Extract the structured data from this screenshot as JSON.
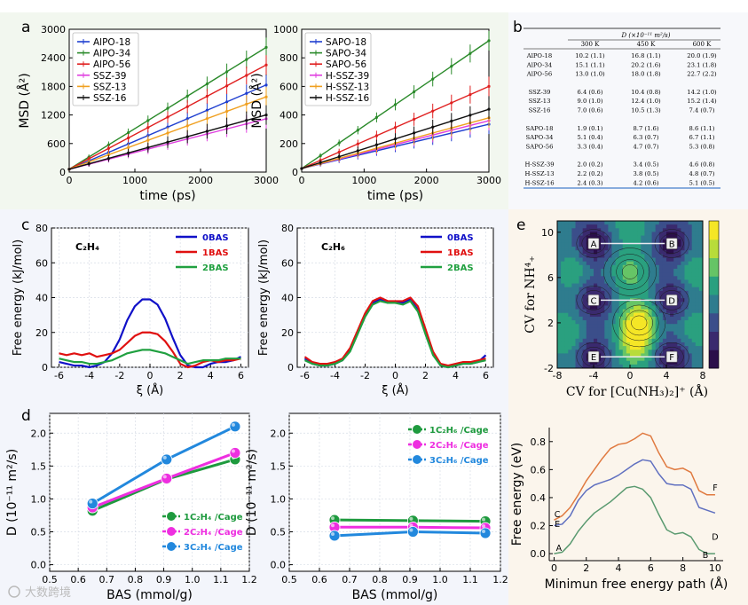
{
  "panel_letters": {
    "a": "a",
    "b": "b",
    "c": "c",
    "d": "d",
    "e": "e"
  },
  "watermark": "大数跨境",
  "chart_data": [
    {
      "id": "a1",
      "type": "line",
      "xlabel": "time (ps)",
      "ylabel": "MSD  (Å²)",
      "xlim": [
        0,
        3000
      ],
      "ylim": [
        0,
        3000
      ],
      "xticks": [
        0,
        1000,
        2000,
        3000
      ],
      "yticks": [
        0,
        600,
        1200,
        1800,
        2400,
        3000
      ],
      "legend_position": "top-left",
      "series": [
        {
          "name": "AlPO-18",
          "color": "#1f3fd0",
          "x": [
            0,
            3000
          ],
          "y": [
            60,
            1830
          ]
        },
        {
          "name": "AlPO-34",
          "color": "#2a8a2a",
          "x": [
            0,
            3000
          ],
          "y": [
            60,
            2620
          ]
        },
        {
          "name": "AlPO-56",
          "color": "#e02020",
          "x": [
            0,
            3000
          ],
          "y": [
            60,
            2250
          ]
        },
        {
          "name": "SSZ-39",
          "color": "#e040e0",
          "x": [
            0,
            3000
          ],
          "y": [
            60,
            1120
          ]
        },
        {
          "name": "SSZ-13",
          "color": "#f0a020",
          "x": [
            0,
            3000
          ],
          "y": [
            60,
            1580
          ]
        },
        {
          "name": "SSZ-16",
          "color": "#111111",
          "x": [
            0,
            3000
          ],
          "y": [
            60,
            1200
          ]
        }
      ]
    },
    {
      "id": "a2",
      "type": "line",
      "xlabel": "time (ps)",
      "ylabel": "MSD  (Å²)",
      "xlim": [
        0,
        3000
      ],
      "ylim": [
        0,
        1000
      ],
      "xticks": [
        0,
        1000,
        2000,
        3000
      ],
      "yticks": [
        0,
        200,
        400,
        600,
        800,
        1000
      ],
      "legend_position": "top-left",
      "series": [
        {
          "name": "SAPO-18",
          "color": "#1f3fd0",
          "x": [
            0,
            3000
          ],
          "y": [
            25,
            335
          ]
        },
        {
          "name": "SAPO-34",
          "color": "#2a8a2a",
          "x": [
            0,
            3000
          ],
          "y": [
            25,
            920
          ]
        },
        {
          "name": "SAPO-56",
          "color": "#e02020",
          "x": [
            0,
            3000
          ],
          "y": [
            25,
            600
          ]
        },
        {
          "name": "H-SSZ-39",
          "color": "#e040e0",
          "x": [
            0,
            3000
          ],
          "y": [
            25,
            360
          ]
        },
        {
          "name": "H-SSZ-13",
          "color": "#f0a020",
          "x": [
            0,
            3000
          ],
          "y": [
            25,
            380
          ]
        },
        {
          "name": "H-SSZ-16",
          "color": "#111111",
          "x": [
            0,
            3000
          ],
          "y": [
            25,
            440
          ]
        }
      ]
    },
    {
      "id": "b",
      "type": "table",
      "header_main": "D (×10⁻¹¹ m²/s)",
      "columns": [
        "",
        "300 K",
        "450 K",
        "600 K"
      ],
      "groups": [
        [
          [
            "AlPO-18",
            "10.2 (1.1)",
            "16.8 (1.1)",
            "20.0 (1.9)"
          ],
          [
            "AlPO-34",
            "15.1 (1.1)",
            "20.2 (1.6)",
            "23.1 (1.8)"
          ],
          [
            "AlPO-56",
            "13.0 (1.0)",
            "18.0 (1.8)",
            "22.7 (2.2)"
          ]
        ],
        [
          [
            "SSZ-39",
            "6.4 (0.6)",
            "10.4 (0.8)",
            "14.2 (1.0)"
          ],
          [
            "SSZ-13",
            "9.0 (1.0)",
            "12.4 (1.0)",
            "15.2 (1.4)"
          ],
          [
            "SSZ-16",
            "7.0 (0.6)",
            "10.5 (1.3)",
            "7.4 (0.7)"
          ]
        ],
        [
          [
            "SAPO-18",
            "1.9 (0.1)",
            "8.7 (1.6)",
            "8.6 (1.1)"
          ],
          [
            "SAPO-34",
            "5.1 (0.4)",
            "6.3 (0.7)",
            "6.7 (1.1)"
          ],
          [
            "SAPO-56",
            "3.3 (0.4)",
            "4.7 (0.7)",
            "5.3 (0.8)"
          ]
        ],
        [
          [
            "H-SSZ-39",
            "2.0 (0.2)",
            "3.4 (0.5)",
            "4.6 (0.8)"
          ],
          [
            "H-SSZ-13",
            "2.2 (0.2)",
            "3.8 (0.5)",
            "4.8 (0.7)"
          ],
          [
            "H-SSZ-16",
            "2.4 (0.3)",
            "4.2 (0.6)",
            "5.1 (0.5)"
          ]
        ]
      ]
    },
    {
      "id": "c1",
      "type": "line",
      "title": "C₂H₄",
      "xlabel": "ξ (Å)",
      "ylabel": "Free energy (kJ/mol)",
      "xlim": [
        -6.5,
        6.5
      ],
      "ylim": [
        0,
        80
      ],
      "xticks": [
        -6,
        -4,
        -2,
        0,
        2,
        4,
        6
      ],
      "yticks": [
        0,
        20,
        40,
        60,
        80
      ],
      "legend_position": "top-right",
      "series": [
        {
          "name": "0BAS",
          "color": "#1010c8",
          "x": [
            -6,
            -5.5,
            -5,
            -4.5,
            -4,
            -3.5,
            -3,
            -2.5,
            -2,
            -1.5,
            -1,
            -0.5,
            0,
            0.5,
            1,
            1.5,
            2,
            2.5,
            3,
            3.5,
            4,
            4.5,
            5,
            5.5,
            6
          ],
          "y": [
            3,
            2,
            1,
            1,
            0,
            1,
            3,
            8,
            16,
            27,
            35,
            39,
            39,
            36,
            28,
            17,
            7,
            1,
            0,
            0,
            2,
            3,
            3,
            4,
            6
          ]
        },
        {
          "name": "1BAS",
          "color": "#e01010",
          "x": [
            -6,
            -5.5,
            -5,
            -4.5,
            -4,
            -3.5,
            -3,
            -2.5,
            -2,
            -1.5,
            -1,
            -0.5,
            0,
            0.5,
            1,
            1.5,
            2,
            2.5,
            3,
            3.5,
            4,
            4.5,
            5,
            5.5,
            6
          ],
          "y": [
            8,
            7,
            8,
            7,
            8,
            6,
            7,
            8,
            10,
            14,
            18,
            20,
            20,
            19,
            15,
            9,
            2,
            0,
            1,
            3,
            4,
            3,
            4,
            4,
            5
          ]
        },
        {
          "name": "2BAS",
          "color": "#20a040",
          "x": [
            -6,
            -5.5,
            -5,
            -4.5,
            -4,
            -3.5,
            -3,
            -2.5,
            -2,
            -1.5,
            -1,
            -0.5,
            0,
            0.5,
            1,
            1.5,
            2,
            2.5,
            3,
            3.5,
            4,
            4.5,
            5,
            5.5,
            6
          ],
          "y": [
            5,
            4,
            3,
            3,
            2,
            2,
            3,
            4,
            6,
            8,
            9,
            10,
            10,
            9,
            8,
            6,
            4,
            2,
            3,
            4,
            4,
            4,
            5,
            5,
            5
          ]
        }
      ]
    },
    {
      "id": "c2",
      "type": "line",
      "title": "C₂H₆",
      "xlabel": "ξ (Å)",
      "ylabel": "Free energy (kJ/mol)",
      "xlim": [
        -6.5,
        6.5
      ],
      "ylim": [
        0,
        80
      ],
      "xticks": [
        -6,
        -4,
        -2,
        0,
        2,
        4,
        6
      ],
      "yticks": [
        0,
        20,
        40,
        60,
        80
      ],
      "legend_position": "top-right",
      "series": [
        {
          "name": "0BAS",
          "color": "#1010c8",
          "x": [
            -6,
            -5.5,
            -5,
            -4.5,
            -4,
            -3.5,
            -3,
            -2.5,
            -2,
            -1.5,
            -1,
            -0.5,
            0,
            0.5,
            1,
            1.5,
            2,
            2.5,
            3,
            3.5,
            4,
            4.5,
            5,
            5.5,
            6
          ],
          "y": [
            5,
            2,
            1,
            1,
            2,
            4,
            10,
            20,
            30,
            37,
            39,
            37,
            38,
            37,
            39,
            33,
            20,
            8,
            1,
            0,
            1,
            2,
            2,
            3,
            7
          ]
        },
        {
          "name": "1BAS",
          "color": "#e01010",
          "x": [
            -6,
            -5.5,
            -5,
            -4.5,
            -4,
            -3.5,
            -3,
            -2.5,
            -2,
            -1.5,
            -1,
            -0.5,
            0,
            0.5,
            1,
            1.5,
            2,
            2.5,
            3,
            3.5,
            4,
            4.5,
            5,
            5.5,
            6
          ],
          "y": [
            6,
            3,
            2,
            2,
            3,
            5,
            11,
            21,
            31,
            38,
            40,
            38,
            38,
            38,
            40,
            35,
            22,
            9,
            2,
            1,
            2,
            3,
            3,
            4,
            5
          ]
        },
        {
          "name": "2BAS",
          "color": "#20a040",
          "x": [
            -6,
            -5.5,
            -5,
            -4.5,
            -4,
            -3.5,
            -3,
            -2.5,
            -2,
            -1.5,
            -1,
            -0.5,
            0,
            0.5,
            1,
            1.5,
            2,
            2.5,
            3,
            3.5,
            4,
            4.5,
            5,
            5.5,
            6
          ],
          "y": [
            4,
            2,
            1,
            1,
            2,
            4,
            9,
            19,
            29,
            36,
            38,
            37,
            37,
            36,
            38,
            32,
            19,
            7,
            1,
            0,
            1,
            2,
            2,
            3,
            4
          ]
        }
      ]
    },
    {
      "id": "d1",
      "type": "line",
      "xlabel": "BAS (mmol/g)",
      "ylabel": "D (10⁻¹¹ m²/s)",
      "xlim": [
        0.5,
        1.2
      ],
      "ylim": [
        -0.1,
        2.3
      ],
      "xticks": [
        0.5,
        0.6,
        0.7,
        0.8,
        0.9,
        1.0,
        1.1,
        1.2
      ],
      "yticks": [
        0.0,
        0.5,
        1.0,
        1.5,
        2.0
      ],
      "legend_position": "bottom-right",
      "series": [
        {
          "name": "1C₂H₄ /Cage",
          "color": "#1e9a3e",
          "x": [
            0.65,
            0.91,
            1.15
          ],
          "y": [
            0.82,
            1.3,
            1.6
          ]
        },
        {
          "name": "2C₂H₄ /Cage",
          "color": "#ee2ee0",
          "x": [
            0.65,
            0.91,
            1.15
          ],
          "y": [
            0.87,
            1.31,
            1.7
          ]
        },
        {
          "name": "3C₂H₄ /Cage",
          "color": "#2288dd",
          "x": [
            0.65,
            0.91,
            1.15
          ],
          "y": [
            0.93,
            1.6,
            2.1
          ]
        }
      ]
    },
    {
      "id": "d2",
      "type": "line",
      "xlabel": "BAS (mmol/g)",
      "ylabel": "D (10⁻¹¹ m²/s)",
      "xlim": [
        0.5,
        1.2
      ],
      "ylim": [
        -0.1,
        2.3
      ],
      "xticks": [
        0.5,
        0.6,
        0.7,
        0.8,
        0.9,
        1.0,
        1.1,
        1.2
      ],
      "yticks": [
        0.0,
        0.5,
        1.0,
        1.5,
        2.0
      ],
      "legend_position": "top-right",
      "series": [
        {
          "name": "1C₂H₆ /Cage",
          "color": "#1e9a3e",
          "x": [
            0.65,
            0.91,
            1.15
          ],
          "y": [
            0.68,
            0.67,
            0.66
          ]
        },
        {
          "name": "2C₂H₆ /Cage",
          "color": "#ee2ee0",
          "x": [
            0.65,
            0.91,
            1.15
          ],
          "y": [
            0.57,
            0.57,
            0.56
          ]
        },
        {
          "name": "3C₂H₆ /Cage",
          "color": "#2288dd",
          "x": [
            0.65,
            0.91,
            1.15
          ],
          "y": [
            0.44,
            0.5,
            0.48
          ]
        }
      ]
    },
    {
      "id": "e1",
      "type": "heatmap",
      "xlabel": "CV for [Cu(NH₃)₂]⁺ (Å)",
      "ylabel": "CV for NH⁴₊",
      "xlim": [
        -8,
        8
      ],
      "ylim": [
        -2,
        11
      ],
      "xticks": [
        -8,
        -4,
        0,
        4,
        8
      ],
      "yticks": [
        -2,
        2,
        6,
        10
      ],
      "markers": [
        {
          "label": "A",
          "x": -4,
          "y": 9
        },
        {
          "label": "B",
          "x": 4.6,
          "y": 9
        },
        {
          "label": "C",
          "x": -4,
          "y": 4
        },
        {
          "label": "D",
          "x": 4.6,
          "y": 4
        },
        {
          "label": "E",
          "x": -4,
          "y": -1
        },
        {
          "label": "F",
          "x": 4.6,
          "y": -1
        }
      ]
    },
    {
      "id": "e2",
      "type": "line",
      "xlabel": "Minimun free energy path (Å)",
      "ylabel": "Free energy (eV)",
      "xlim": [
        -0.3,
        10.5
      ],
      "ylim": [
        -0.05,
        0.9
      ],
      "xticks": [
        0,
        2,
        4,
        6,
        8,
        10
      ],
      "yticks": [
        0.0,
        0.2,
        0.4,
        0.6,
        0.8
      ],
      "point_labels": [
        {
          "label": "A",
          "x": 0.3,
          "y": 0.02
        },
        {
          "label": "B",
          "x": 9.4,
          "y": -0.03
        },
        {
          "label": "C",
          "x": 0.2,
          "y": 0.26
        },
        {
          "label": "D",
          "x": 10.0,
          "y": 0.1
        },
        {
          "label": "E",
          "x": 0.2,
          "y": 0.19
        },
        {
          "label": "F",
          "x": 10.0,
          "y": 0.45
        }
      ],
      "series": [
        {
          "color": "#e07a40",
          "x": [
            0,
            0.5,
            1,
            1.5,
            2,
            2.5,
            3,
            3.5,
            4,
            4.5,
            5,
            5.5,
            6,
            6.5,
            7,
            7.5,
            8,
            8.5,
            9,
            9.5,
            10
          ],
          "y": [
            0.24,
            0.27,
            0.33,
            0.42,
            0.52,
            0.6,
            0.68,
            0.75,
            0.78,
            0.79,
            0.82,
            0.86,
            0.84,
            0.72,
            0.62,
            0.6,
            0.61,
            0.58,
            0.45,
            0.42,
            0.42
          ]
        },
        {
          "color": "#6070c0",
          "x": [
            0,
            0.5,
            1,
            1.5,
            2,
            2.5,
            3,
            3.5,
            4,
            4.5,
            5,
            5.5,
            6,
            6.5,
            7,
            7.5,
            8,
            8.5,
            9,
            9.5,
            10
          ],
          "y": [
            0.2,
            0.21,
            0.27,
            0.38,
            0.45,
            0.49,
            0.51,
            0.53,
            0.56,
            0.6,
            0.64,
            0.67,
            0.66,
            0.57,
            0.5,
            0.49,
            0.49,
            0.46,
            0.33,
            0.31,
            0.29
          ]
        },
        {
          "color": "#5a9a70",
          "x": [
            0,
            0.5,
            1,
            1.5,
            2,
            2.5,
            3,
            3.5,
            4,
            4.5,
            5,
            5.5,
            6,
            6.5,
            7,
            7.5,
            8,
            8.5,
            9,
            9.5,
            10
          ],
          "y": [
            0.0,
            0.01,
            0.07,
            0.16,
            0.23,
            0.29,
            0.33,
            0.37,
            0.42,
            0.47,
            0.48,
            0.46,
            0.4,
            0.28,
            0.17,
            0.14,
            0.15,
            0.12,
            0.03,
            0.0,
            0.0
          ]
        }
      ]
    }
  ]
}
